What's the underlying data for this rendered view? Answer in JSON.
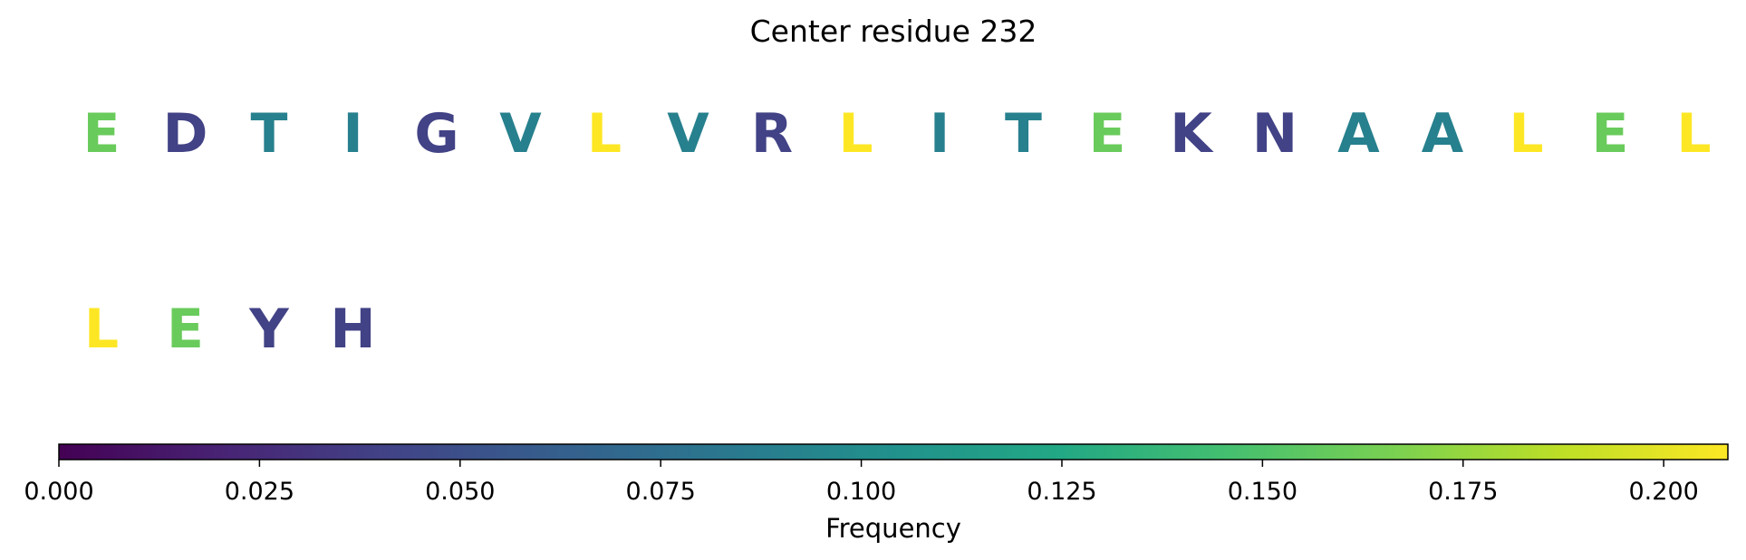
{
  "chart_data": {
    "type": "sequence-heatmap",
    "title": "Center residue 232",
    "residues": [
      {
        "letter": "E",
        "frequency": 0.16
      },
      {
        "letter": "D",
        "frequency": 0.04
      },
      {
        "letter": "T",
        "frequency": 0.09
      },
      {
        "letter": "I",
        "frequency": 0.09
      },
      {
        "letter": "G",
        "frequency": 0.04
      },
      {
        "letter": "V",
        "frequency": 0.09
      },
      {
        "letter": "L",
        "frequency": 0.208
      },
      {
        "letter": "V",
        "frequency": 0.09
      },
      {
        "letter": "R",
        "frequency": 0.04
      },
      {
        "letter": "L",
        "frequency": 0.208
      },
      {
        "letter": "I",
        "frequency": 0.09
      },
      {
        "letter": "T",
        "frequency": 0.09
      },
      {
        "letter": "E",
        "frequency": 0.16
      },
      {
        "letter": "K",
        "frequency": 0.04
      },
      {
        "letter": "N",
        "frequency": 0.04
      },
      {
        "letter": "A",
        "frequency": 0.09
      },
      {
        "letter": "A",
        "frequency": 0.09
      },
      {
        "letter": "L",
        "frequency": 0.208
      },
      {
        "letter": "E",
        "frequency": 0.16
      },
      {
        "letter": "L",
        "frequency": 0.208
      },
      {
        "letter": "L",
        "frequency": 0.208
      },
      {
        "letter": "E",
        "frequency": 0.16
      },
      {
        "letter": "Y",
        "frequency": 0.04
      },
      {
        "letter": "H",
        "frequency": 0.04
      }
    ],
    "colorbar": {
      "label": "Frequency",
      "colormap": "viridis",
      "range": [
        0,
        0.208
      ],
      "ticks": [
        0.0,
        0.025,
        0.05,
        0.075,
        0.1,
        0.125,
        0.15,
        0.175,
        0.2
      ],
      "tick_labels": [
        "0.000",
        "0.025",
        "0.050",
        "0.075",
        "0.100",
        "0.125",
        "0.150",
        "0.175",
        "0.200"
      ],
      "orientation": "horizontal"
    }
  }
}
